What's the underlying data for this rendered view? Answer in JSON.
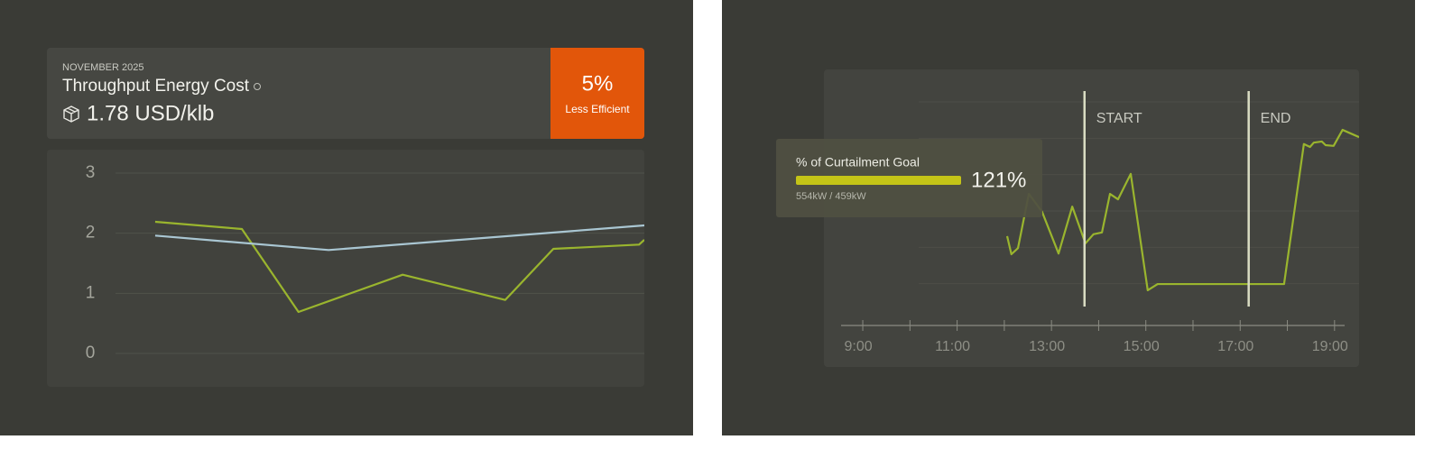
{
  "summary_card": {
    "period": "NOVEMBER 2025",
    "title": "Throughput Energy Cost",
    "value": "1.78 USD/klb",
    "badge": {
      "value": "5%",
      "label": "Less Efficient"
    }
  },
  "chart_data": [
    {
      "type": "line",
      "xlim": [
        0,
        100
      ],
      "ylim": [
        0,
        3
      ],
      "yticks": [
        0,
        1,
        2,
        3
      ],
      "grid": true,
      "series": [
        {
          "color": "#9ab52e",
          "x": [
            7.5,
            23.9,
            34.6,
            54.3,
            73.7,
            82.8,
            99.0,
            100
          ],
          "values": [
            2.19,
            2.07,
            0.69,
            1.31,
            0.89,
            1.74,
            1.81,
            1.89
          ]
        },
        {
          "color": "#a9c6d2",
          "x": [
            7.5,
            40.3,
            100
          ],
          "values": [
            1.96,
            1.72,
            2.13
          ]
        }
      ]
    },
    {
      "type": "line",
      "xlim": [
        8.54,
        19.52
      ],
      "ylim": [
        0,
        6
      ],
      "yticks": [
        1,
        2,
        3,
        4,
        5,
        6
      ],
      "grid": true,
      "xticks": [
        {
          "value": 9,
          "label": "9:00"
        },
        {
          "value": 11,
          "label": "11:00"
        },
        {
          "value": 13,
          "label": "13:00"
        },
        {
          "value": 15,
          "label": "15:00"
        },
        {
          "value": 17,
          "label": "17:00"
        },
        {
          "value": 19,
          "label": "19:00"
        }
      ],
      "xminor": [
        10,
        12,
        14,
        16,
        18
      ],
      "markers": [
        {
          "label": "START",
          "x": 13.7,
          "color": "#d9dcc2"
        },
        {
          "label": "END",
          "x": 17.18,
          "color": "#d9dcc2"
        }
      ],
      "series": [
        {
          "color": "#9ab52e",
          "x": [
            12.06,
            12.15,
            12.29,
            12.52,
            12.8,
            13.15,
            13.44,
            13.72,
            13.89,
            14.07,
            14.24,
            14.41,
            14.68,
            15.04,
            15.25,
            17.93,
            18.35,
            18.48,
            18.56,
            18.73,
            18.81,
            18.98,
            19.17,
            19.52
          ],
          "values": [
            2.31,
            1.81,
            1.98,
            3.47,
            2.98,
            1.83,
            3.12,
            2.11,
            2.36,
            2.41,
            3.47,
            3.32,
            4.02,
            0.82,
            0.99,
            0.99,
            4.84,
            4.76,
            4.88,
            4.91,
            4.81,
            4.79,
            5.23,
            5.03
          ]
        }
      ]
    }
  ],
  "tooltip": {
    "title": "% of Curtailment Goal",
    "value": 121,
    "value_label": "121%",
    "detail": "554kW / 459kW",
    "color": "#c4c417"
  }
}
